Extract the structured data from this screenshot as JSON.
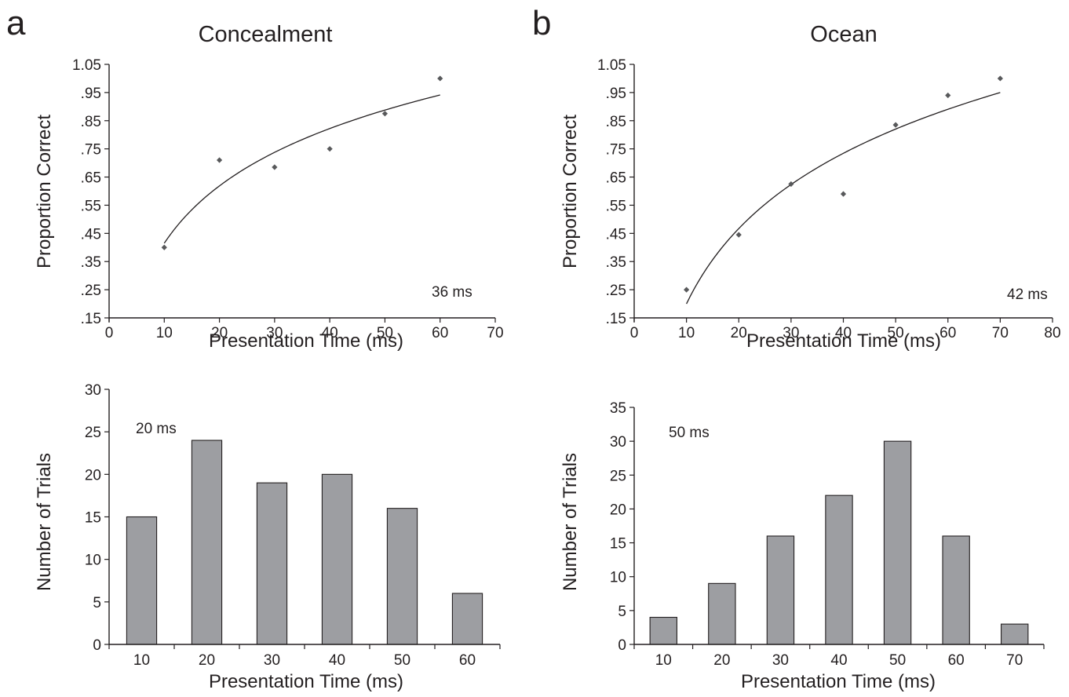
{
  "panels": [
    {
      "letter": "a",
      "title": "Concealment",
      "top": {
        "threshold_label": "36 ms",
        "chart_data": {
          "type": "scatter",
          "xlabel": "Presentation Time (ms)",
          "ylabel": "Proportion Correct",
          "xlim": [
            0,
            70
          ],
          "ylim": [
            0.15,
            1.05
          ],
          "xticks": [
            "0",
            "10",
            "20",
            "30",
            "40",
            "50",
            "60",
            "70"
          ],
          "yticks": [
            ".15",
            ".25",
            ".35",
            ".45",
            ".55",
            ".65",
            ".75",
            ".85",
            ".95",
            "1.05"
          ],
          "grid": false,
          "points": [
            {
              "x": 10,
              "y": 0.4
            },
            {
              "x": 20,
              "y": 0.71
            },
            {
              "x": 30,
              "y": 0.685
            },
            {
              "x": 40,
              "y": 0.75
            },
            {
              "x": 50,
              "y": 0.875
            },
            {
              "x": 60,
              "y": 1.0
            }
          ],
          "fit": {
            "type": "log",
            "a": 0.415,
            "b": 0.2937,
            "x_range": [
              10,
              60
            ]
          }
        }
      },
      "bottom": {
        "threshold_label": "20 ms",
        "chart_data": {
          "type": "bar",
          "xlabel": "Presentation Time (ms)",
          "ylabel": "Number of Trials",
          "categories": [
            "10",
            "20",
            "30",
            "40",
            "50",
            "60"
          ],
          "values": [
            15,
            24,
            19,
            20,
            16,
            6
          ],
          "ylim": [
            0,
            30
          ],
          "yticks": [
            "0",
            "5",
            "10",
            "15",
            "20",
            "25",
            "30"
          ],
          "grid": false,
          "bar_color": "#9d9ea2"
        }
      }
    },
    {
      "letter": "b",
      "title": "Ocean",
      "top": {
        "threshold_label": "42 ms",
        "chart_data": {
          "type": "scatter",
          "xlabel": "Presentation Time (ms)",
          "ylabel": "Proportion Correct",
          "xlim": [
            0,
            80
          ],
          "ylim": [
            0.15,
            1.05
          ],
          "xticks": [
            "0",
            "10",
            "20",
            "30",
            "40",
            "50",
            "60",
            "70",
            "80"
          ],
          "yticks": [
            ".15",
            ".25",
            ".35",
            ".45",
            ".55",
            ".65",
            ".75",
            ".85",
            ".95",
            "1.05"
          ],
          "grid": false,
          "points": [
            {
              "x": 10,
              "y": 0.25
            },
            {
              "x": 20,
              "y": 0.445
            },
            {
              "x": 30,
              "y": 0.625
            },
            {
              "x": 40,
              "y": 0.59
            },
            {
              "x": 50,
              "y": 0.835
            },
            {
              "x": 60,
              "y": 0.94
            },
            {
              "x": 70,
              "y": 1.0
            }
          ],
          "fit": {
            "type": "log",
            "a": 0.2,
            "b": 0.3854,
            "x_range": [
              10,
              70
            ]
          }
        }
      },
      "bottom": {
        "threshold_label": "50 ms",
        "chart_data": {
          "type": "bar",
          "xlabel": "Presentation Time (ms)",
          "ylabel": "Number of Trials",
          "categories": [
            "10",
            "20",
            "30",
            "40",
            "50",
            "60",
            "70"
          ],
          "values": [
            4,
            9,
            16,
            22,
            30,
            16,
            3
          ],
          "ylim": [
            0,
            35
          ],
          "yticks": [
            "0",
            "5",
            "10",
            "15",
            "20",
            "25",
            "30",
            "35"
          ],
          "grid": false,
          "bar_color": "#9d9ea2"
        }
      }
    }
  ]
}
